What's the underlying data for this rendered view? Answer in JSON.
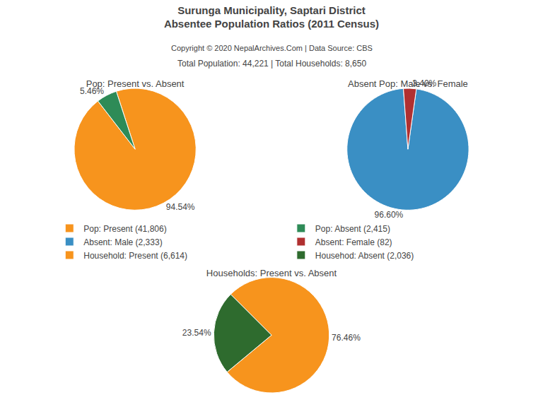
{
  "title": "Surunga Municipality, Saptari District",
  "subtitle": "Absentee Population Ratios (2011 Census)",
  "annotations": [
    "Copyright © 2020 NepalArchives.Com | Data Source: CBS",
    "Total Population: 44,221 | Total Households: 8,650"
  ],
  "legend": "center",
  "chart_data": [
    {
      "type": "pie",
      "title": "Pop: Present vs. Absent",
      "categories": [
        "Pop: Present (41,806)",
        "Pop: Absent (2,415)"
      ],
      "values": [
        94.54,
        5.46
      ],
      "value_labels": [
        "94.54%",
        "5.46%"
      ],
      "colors": [
        "#F7941D",
        "#2E8B57"
      ]
    },
    {
      "type": "pie",
      "title": "Absent Pop: Male vs. Female",
      "categories": [
        "Absent: Male (2,333)",
        "Absent: Female (82)"
      ],
      "values": [
        96.6,
        3.4
      ],
      "value_labels": [
        "96.60%",
        "3.40%"
      ],
      "colors": [
        "#3A8FC4",
        "#B03030"
      ]
    },
    {
      "type": "pie",
      "title": "Households: Present vs. Absent",
      "categories": [
        "Household: Present (6,614)",
        "Househod: Absent (2,036)"
      ],
      "values": [
        76.46,
        23.54
      ],
      "value_labels": [
        "76.46%",
        "23.54%"
      ],
      "colors": [
        "#F7941D",
        "#2E6B2E"
      ]
    }
  ]
}
